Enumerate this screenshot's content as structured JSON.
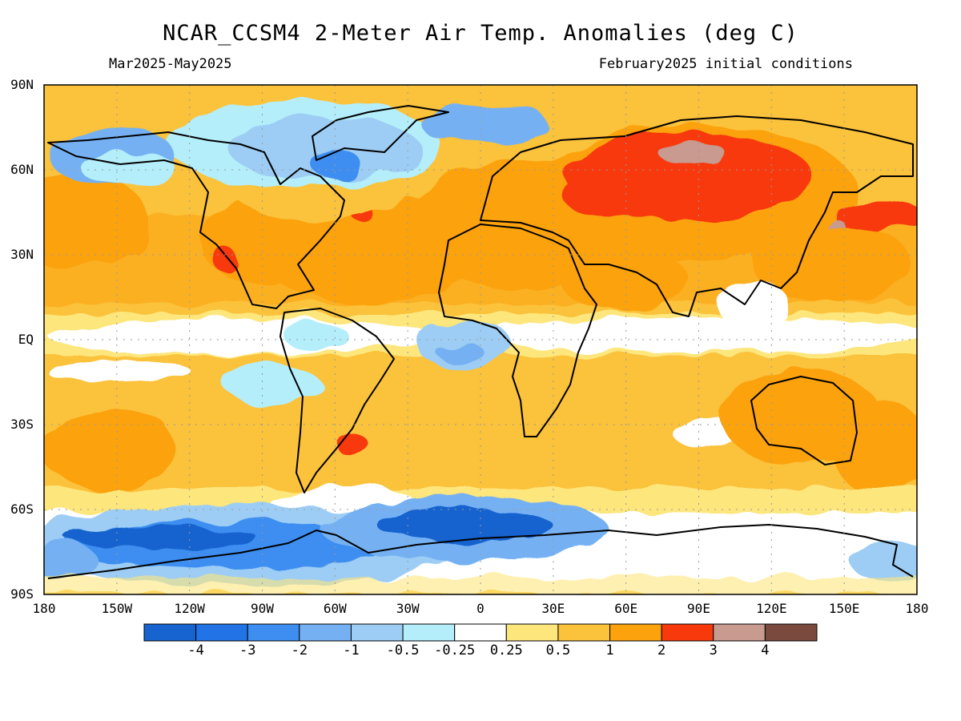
{
  "title": "NCAR_CCSM4 2-Meter Air Temp. Anomalies (deg C)",
  "period": "Mar2025-May2025",
  "initial_conditions": "February2025 initial conditions",
  "lat_labels": [
    "90N",
    "60N",
    "30N",
    "EQ",
    "30S",
    "60S",
    "90S"
  ],
  "lon_labels": [
    "180",
    "150W",
    "120W",
    "90W",
    "60W",
    "30W",
    "0",
    "30E",
    "60E",
    "90E",
    "120E",
    "150E",
    "180"
  ],
  "colorbar": {
    "labels": [
      "-4",
      "-3",
      "-2",
      "-1",
      "-0.5",
      "-0.25",
      "0.25",
      "0.5",
      "1",
      "2",
      "3",
      "4"
    ],
    "colors": [
      "#1763cf",
      "#2173e6",
      "#3d8ef0",
      "#75b1f2",
      "#9dcdf4",
      "#b4eefa",
      "#ffffff",
      "#fde67c",
      "#fbc23b",
      "#fba20d",
      "#f8390c",
      "#c89a90",
      "#7a4a3e"
    ]
  },
  "colors": {
    "land_outline": "#000000",
    "grid": "#9a9a9a"
  }
}
